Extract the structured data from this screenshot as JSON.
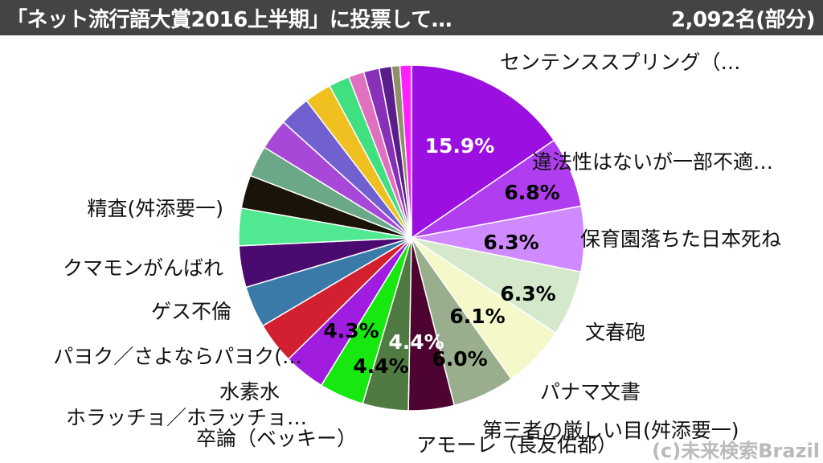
{
  "header": {
    "title": "「ネット流行語大賞2016上半期」に投票して…",
    "count": "2,092名(部分)"
  },
  "watermark": "(c)未来検索Brazil",
  "chart_data": {
    "type": "pie",
    "title": "「ネット流行語大賞2016上半期」に投票して…",
    "slices": [
      {
        "label": "センテンススプリング（…",
        "value": 15.9,
        "pct_label": "15.9%",
        "color": "#9b10e0"
      },
      {
        "label": "違法性はないが一部不適…",
        "value": 6.8,
        "pct_label": "6.8%",
        "color": "#b03ef0"
      },
      {
        "label": "保育園落ちた日本死ね",
        "value": 6.3,
        "pct_label": "6.3%",
        "color": "#cf8aff"
      },
      {
        "label": "文春砲",
        "value": 6.3,
        "pct_label": "6.3%",
        "color": "#d4e8cc"
      },
      {
        "label": "パナマ文書",
        "value": 6.1,
        "pct_label": "6.1%",
        "color": "#f5f8c8"
      },
      {
        "label": "第三者の厳しい目(舛添要一)",
        "value": 6.0,
        "pct_label": "6.0%",
        "color": "#98ae8c"
      },
      {
        "label": "アモーレ（長友佑都）",
        "value": 4.4,
        "pct_label": "4.4%",
        "color": "#4e0430"
      },
      {
        "label": "卒論（ベッキー）",
        "value": 4.4,
        "pct_label": "4.4%",
        "color": "#4f7a42"
      },
      {
        "label": "ホラッチョ／ホラッチョ…",
        "value": 4.3,
        "pct_label": "4.3%",
        "color": "#17e80f"
      },
      {
        "label": "水素水",
        "value": 4.0,
        "pct_label": "",
        "color": "#a01de0"
      },
      {
        "label": "パヨク／さよならパヨク(…",
        "value": 4.0,
        "pct_label": "",
        "color": "#d22030"
      },
      {
        "label": "ゲス不倫",
        "value": 4.0,
        "pct_label": "",
        "color": "#3a7aa8"
      },
      {
        "label": "クマモンがんばれ",
        "value": 4.0,
        "pct_label": "",
        "color": "#4a0a70"
      },
      {
        "label": "精査(舛添要一)",
        "value": 3.6,
        "pct_label": "",
        "color": "#50e890"
      },
      {
        "label": "",
        "value": 3.2,
        "pct_label": "",
        "color": "#1a1408"
      },
      {
        "label": "",
        "value": 3.0,
        "pct_label": "",
        "color": "#6aa888"
      },
      {
        "label": "",
        "value": 3.0,
        "pct_label": "",
        "color": "#a848d8"
      },
      {
        "label": "",
        "value": 3.0,
        "pct_label": "",
        "color": "#7060d0"
      },
      {
        "label": "",
        "value": 2.6,
        "pct_label": "",
        "color": "#f0c020"
      },
      {
        "label": "",
        "value": 2.0,
        "pct_label": "",
        "color": "#40e080"
      },
      {
        "label": "",
        "value": 1.5,
        "pct_label": "",
        "color": "#e070c0"
      },
      {
        "label": "",
        "value": 1.5,
        "pct_label": "",
        "color": "#8830b8"
      },
      {
        "label": "",
        "value": 1.2,
        "pct_label": "",
        "color": "#5a1e8a"
      },
      {
        "label": "",
        "value": 0.8,
        "pct_label": "",
        "color": "#909068"
      },
      {
        "label": "",
        "value": 1.1,
        "pct_label": "",
        "color": "#ff20ff"
      }
    ]
  }
}
